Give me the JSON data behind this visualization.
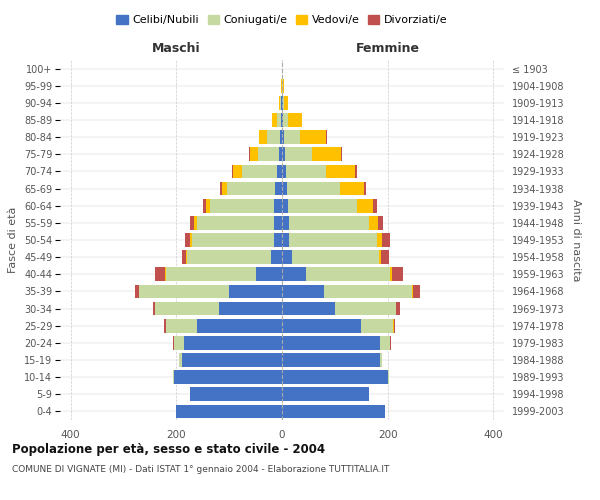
{
  "age_groups": [
    "0-4",
    "5-9",
    "10-14",
    "15-19",
    "20-24",
    "25-29",
    "30-34",
    "35-39",
    "40-44",
    "45-49",
    "50-54",
    "55-59",
    "60-64",
    "65-69",
    "70-74",
    "75-79",
    "80-84",
    "85-89",
    "90-94",
    "95-99",
    "100+"
  ],
  "birth_years": [
    "1999-2003",
    "1994-1998",
    "1989-1993",
    "1984-1988",
    "1979-1983",
    "1974-1978",
    "1969-1973",
    "1964-1968",
    "1959-1963",
    "1954-1958",
    "1949-1953",
    "1944-1948",
    "1939-1943",
    "1934-1938",
    "1929-1933",
    "1924-1928",
    "1919-1923",
    "1914-1918",
    "1909-1913",
    "1904-1908",
    "≤ 1903"
  ],
  "colors": {
    "celibi": "#4472c4",
    "coniugati": "#c5d9a0",
    "vedovi": "#ffc000",
    "divorziati": "#c0504d"
  },
  "maschi": {
    "celibi": [
      200,
      175,
      205,
      190,
      185,
      160,
      120,
      100,
      50,
      20,
      16,
      16,
      16,
      14,
      10,
      6,
      4,
      2,
      1,
      0,
      0
    ],
    "coniugati": [
      0,
      0,
      2,
      5,
      20,
      60,
      120,
      170,
      170,
      160,
      155,
      145,
      120,
      90,
      65,
      40,
      25,
      8,
      2,
      0,
      0
    ],
    "vedovi": [
      0,
      0,
      0,
      0,
      0,
      0,
      0,
      0,
      1,
      2,
      3,
      5,
      8,
      10,
      18,
      15,
      15,
      8,
      3,
      1,
      0
    ],
    "divorziati": [
      0,
      0,
      0,
      0,
      1,
      3,
      5,
      8,
      20,
      8,
      10,
      8,
      5,
      3,
      2,
      2,
      0,
      0,
      0,
      0,
      0
    ]
  },
  "femmine": {
    "celibi": [
      195,
      165,
      200,
      185,
      185,
      150,
      100,
      80,
      45,
      18,
      14,
      14,
      12,
      10,
      8,
      6,
      4,
      2,
      1,
      0,
      0
    ],
    "coniugati": [
      0,
      0,
      2,
      5,
      20,
      60,
      115,
      165,
      160,
      165,
      165,
      150,
      130,
      100,
      75,
      50,
      30,
      10,
      3,
      1,
      0
    ],
    "vedovi": [
      0,
      0,
      0,
      0,
      0,
      1,
      1,
      2,
      3,
      5,
      10,
      18,
      30,
      45,
      55,
      55,
      50,
      25,
      8,
      2,
      0
    ],
    "divorziati": [
      0,
      0,
      0,
      0,
      1,
      3,
      8,
      15,
      20,
      15,
      15,
      10,
      8,
      4,
      3,
      2,
      1,
      0,
      0,
      0,
      0
    ]
  },
  "title": "Popolazione per età, sesso e stato civile - 2004",
  "subtitle": "COMUNE DI VIGNATE (MI) - Dati ISTAT 1° gennaio 2004 - Elaborazione TUTTITALIA.IT",
  "xlabel_left": "Maschi",
  "xlabel_right": "Femmine",
  "ylabel_left": "Fasce di età",
  "ylabel_right": "Anni di nascita",
  "xlim": 420,
  "legend_labels": [
    "Celibi/Nubili",
    "Coniugati/e",
    "Vedovi/e",
    "Divorziati/e"
  ],
  "background_color": "#ffffff",
  "grid_color": "#cccccc"
}
